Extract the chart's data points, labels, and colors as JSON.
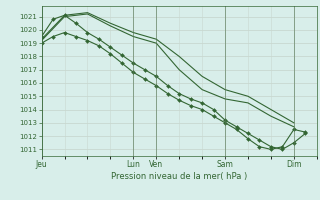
{
  "background_color": "#d8eeea",
  "grid_color": "#c8d8d0",
  "line_color": "#336633",
  "marker_color": "#336633",
  "xlabel": "Pression niveau de la mer( hPa )",
  "ylim": [
    1010.5,
    1021.8
  ],
  "yticks": [
    1011,
    1012,
    1013,
    1014,
    1015,
    1016,
    1017,
    1018,
    1019,
    1020,
    1021
  ],
  "day_labels": [
    "Jeu",
    "Lun",
    "Ven",
    "Sam",
    "Dim"
  ],
  "day_positions": [
    0,
    96,
    120,
    192,
    264
  ],
  "total_hours": 288,
  "series1_x": [
    0,
    12,
    24,
    36,
    48,
    60,
    72,
    84,
    96,
    108,
    120,
    132,
    144,
    156,
    168,
    180,
    192,
    204,
    216,
    228,
    240,
    252,
    264,
    276
  ],
  "series1_y": [
    1019.0,
    1019.5,
    1019.8,
    1019.5,
    1019.2,
    1018.8,
    1018.2,
    1017.5,
    1016.8,
    1016.3,
    1015.8,
    1015.2,
    1014.7,
    1014.3,
    1014.0,
    1013.5,
    1013.0,
    1012.5,
    1011.8,
    1011.2,
    1011.0,
    1011.2,
    1012.5,
    1012.3
  ],
  "series2_x": [
    0,
    12,
    24,
    36,
    48,
    60,
    72,
    84,
    96,
    108,
    120,
    132,
    144,
    156,
    168,
    180,
    192,
    204,
    216,
    228,
    240,
    252,
    264,
    276
  ],
  "series2_y": [
    1019.5,
    1020.8,
    1021.1,
    1020.5,
    1019.8,
    1019.3,
    1018.7,
    1018.1,
    1017.5,
    1017.0,
    1016.5,
    1015.8,
    1015.2,
    1014.8,
    1014.5,
    1014.0,
    1013.2,
    1012.7,
    1012.2,
    1011.7,
    1011.2,
    1011.0,
    1011.5,
    1012.2
  ],
  "series3_x": [
    0,
    24,
    48,
    72,
    96,
    120,
    144,
    168,
    192,
    216,
    240,
    264
  ],
  "series3_y": [
    1019.2,
    1021.0,
    1021.2,
    1020.3,
    1019.5,
    1019.0,
    1017.0,
    1015.5,
    1014.8,
    1014.5,
    1013.5,
    1012.7
  ],
  "series4_x": [
    0,
    24,
    48,
    72,
    96,
    120,
    144,
    168,
    192,
    216,
    240,
    264
  ],
  "series4_y": [
    1019.3,
    1021.1,
    1021.3,
    1020.5,
    1019.8,
    1019.3,
    1018.0,
    1016.5,
    1015.5,
    1015.0,
    1014.0,
    1013.0
  ]
}
